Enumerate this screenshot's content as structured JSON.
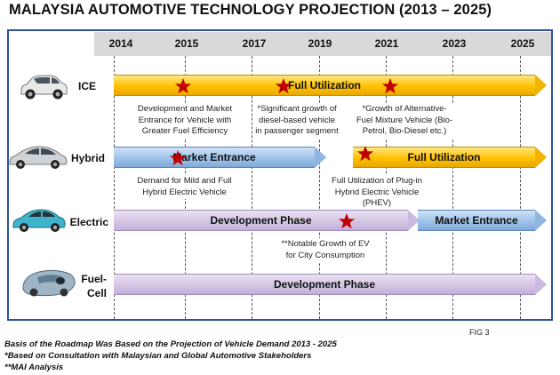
{
  "title": "MALAYSIA AUTOMOTIVE TECHNOLOGY PROJECTION (2013 – 2025)",
  "years": [
    "2014",
    "2015",
    "2017",
    "2019",
    "2021",
    "2023",
    "2025"
  ],
  "rows": {
    "ice": {
      "label": "ICE",
      "bar1": "Full Utilization",
      "note1": "Development and Market Entrance for Vehicle with Greater Fuel Efficiency",
      "note2": "*Significant growth of diesel-based vehicle in passenger segment",
      "note3": "*Growth of Alternative-Fuel Mixture Vehicle (Bio-Petrol, Bio-Diesel etc.)"
    },
    "hybrid": {
      "label": "Hybrid",
      "bar1": "Market Entrance",
      "bar2": "Full Utilization",
      "note1": "Demand for Mild and Full Hybrid Electric Vehicle",
      "note2": "Full Utilization of Plug-in Hybrid Electric Vehicle (PHEV)"
    },
    "electric": {
      "label": "Electric",
      "bar1": "Development Phase",
      "bar2": "Market Entrance",
      "note1": "**Notable Growth of EV for City Consumption"
    },
    "fuelcell": {
      "label_line1": "Fuel-",
      "label_line2": "Cell",
      "bar1": "Development Phase"
    }
  },
  "fig_label": "FIG 3",
  "footnotes": [
    "Basis of the Roadmap Was Based on the Projection of Vehicle Demand 2013 - 2025",
    "*Based on Consultation with Malaysian and Global Automotive Stakeholders",
    "**MAI Analysis"
  ],
  "colors": {
    "frame": "#2f5597",
    "full_utilization": "#ffc000",
    "market_entrance": "#9ec3ea",
    "development_phase": "#d4c4e4",
    "star": "#c00000"
  },
  "icons": [
    "sedan-car-icon",
    "hybrid-car-icon",
    "electric-car-icon",
    "fuel-cell-car-icon",
    "star-icon"
  ]
}
